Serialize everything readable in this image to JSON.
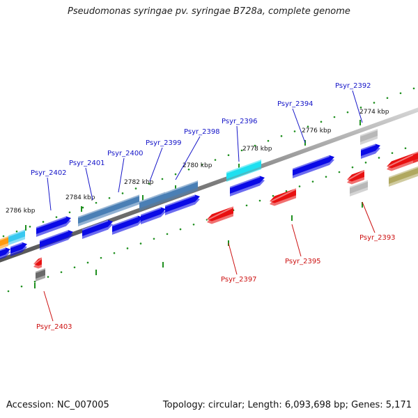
{
  "title": "Pseudomonas syringae pv. syringae B728a, complete genome",
  "footer": {
    "accession": "Accession: NC_007005",
    "summary": "Topology: circular; Length: 6,093,698 bp; Genes: 5,171"
  },
  "colors": {
    "backbone": "#7a7a7a",
    "ruler_tick": "#1e8f1e",
    "label_forward": "#1414c8",
    "label_reverse": "#cc1010",
    "gene_blue": "#0a0ae6",
    "gene_steel": "#4a7fb5",
    "gene_cyan": "#1ee0f0",
    "gene_sky": "#38c8f0",
    "gene_orange": "#ff9a10",
    "gene_red": "#e81010",
    "gene_gray": "#b8b8b8",
    "gene_darkgray": "#6a6a6a",
    "gene_olive": "#b0a860"
  },
  "ruler_labels": [
    {
      "text": "2774 kbp",
      "kbp": 2774
    },
    {
      "text": "2776 kbp",
      "kbp": 2776
    },
    {
      "text": "2778 kbp",
      "kbp": 2778
    },
    {
      "text": "2780 kbp",
      "kbp": 2780
    },
    {
      "text": "2782 kbp",
      "kbp": 2782
    },
    {
      "text": "2784 kbp",
      "kbp": 2784
    },
    {
      "text": "2786 kbp",
      "kbp": 2786
    }
  ],
  "gene_labels": [
    {
      "text": "Psyr_2392",
      "strand": "forward"
    },
    {
      "text": "Psyr_2393",
      "strand": "reverse"
    },
    {
      "text": "Psyr_2394",
      "strand": "forward"
    },
    {
      "text": "Psyr_2395",
      "strand": "reverse"
    },
    {
      "text": "Psyr_2396",
      "strand": "forward"
    },
    {
      "text": "Psyr_2397",
      "strand": "reverse"
    },
    {
      "text": "Psyr_2398",
      "strand": "forward"
    },
    {
      "text": "Psyr_2399",
      "strand": "forward"
    },
    {
      "text": "Psyr_2400",
      "strand": "forward"
    },
    {
      "text": "Psyr_2401",
      "strand": "forward"
    },
    {
      "text": "Psyr_2402",
      "strand": "forward"
    },
    {
      "text": "Psyr_2403",
      "strand": "reverse"
    }
  ]
}
